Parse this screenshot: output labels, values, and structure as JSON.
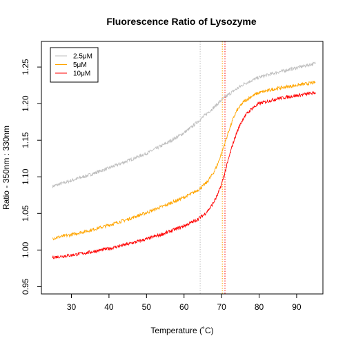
{
  "chart_data": {
    "type": "line",
    "title": "Fluorescence Ratio of Lysozyme",
    "xlabel": "Temperature (˚C)",
    "ylabel": "Ratio - 350nm : 330nm",
    "xlim": [
      22,
      97
    ],
    "ylim": [
      0.94,
      1.285
    ],
    "xticks": [
      30,
      40,
      50,
      60,
      70,
      80,
      90
    ],
    "yticks": [
      0.95,
      1.0,
      1.05,
      1.1,
      1.15,
      1.2,
      1.25
    ],
    "grid": false,
    "legend_position": "top-left",
    "series": [
      {
        "name": "2.5μM",
        "color": "#bebebe",
        "x": [
          25,
          30,
          35,
          40,
          45,
          50,
          55,
          60,
          62,
          64,
          66,
          68,
          70,
          72,
          74,
          76,
          80,
          85,
          90,
          95
        ],
        "y": [
          1.087,
          1.095,
          1.103,
          1.112,
          1.122,
          1.132,
          1.145,
          1.16,
          1.168,
          1.177,
          1.186,
          1.195,
          1.205,
          1.213,
          1.22,
          1.227,
          1.236,
          1.243,
          1.249,
          1.255
        ]
      },
      {
        "name": "5μM",
        "color": "#ffa500",
        "x": [
          25,
          30,
          35,
          40,
          45,
          50,
          55,
          60,
          62,
          64,
          66,
          67,
          68,
          69,
          70,
          71,
          72,
          73,
          74,
          76,
          78,
          80,
          85,
          90,
          95
        ],
        "y": [
          1.016,
          1.021,
          1.027,
          1.034,
          1.042,
          1.051,
          1.061,
          1.072,
          1.077,
          1.083,
          1.092,
          1.099,
          1.107,
          1.118,
          1.132,
          1.148,
          1.164,
          1.178,
          1.19,
          1.203,
          1.21,
          1.215,
          1.221,
          1.225,
          1.229
        ]
      },
      {
        "name": "10μM",
        "color": "#ff0000",
        "x": [
          25,
          30,
          35,
          40,
          45,
          50,
          55,
          60,
          63,
          65,
          66,
          67,
          68,
          69,
          70,
          71,
          72,
          73,
          74,
          75,
          76,
          78,
          80,
          85,
          90,
          95
        ],
        "y": [
          0.99,
          0.993,
          0.997,
          1.002,
          1.008,
          1.015,
          1.023,
          1.033,
          1.04,
          1.047,
          1.052,
          1.058,
          1.066,
          1.076,
          1.09,
          1.108,
          1.127,
          1.145,
          1.16,
          1.172,
          1.182,
          1.193,
          1.2,
          1.207,
          1.211,
          1.215
        ]
      }
    ],
    "vlines": [
      {
        "x": 64.3,
        "color": "#bebebe"
      },
      {
        "x": 70.2,
        "color": "#ffa500"
      },
      {
        "x": 70.9,
        "color": "#ff0000"
      }
    ]
  }
}
